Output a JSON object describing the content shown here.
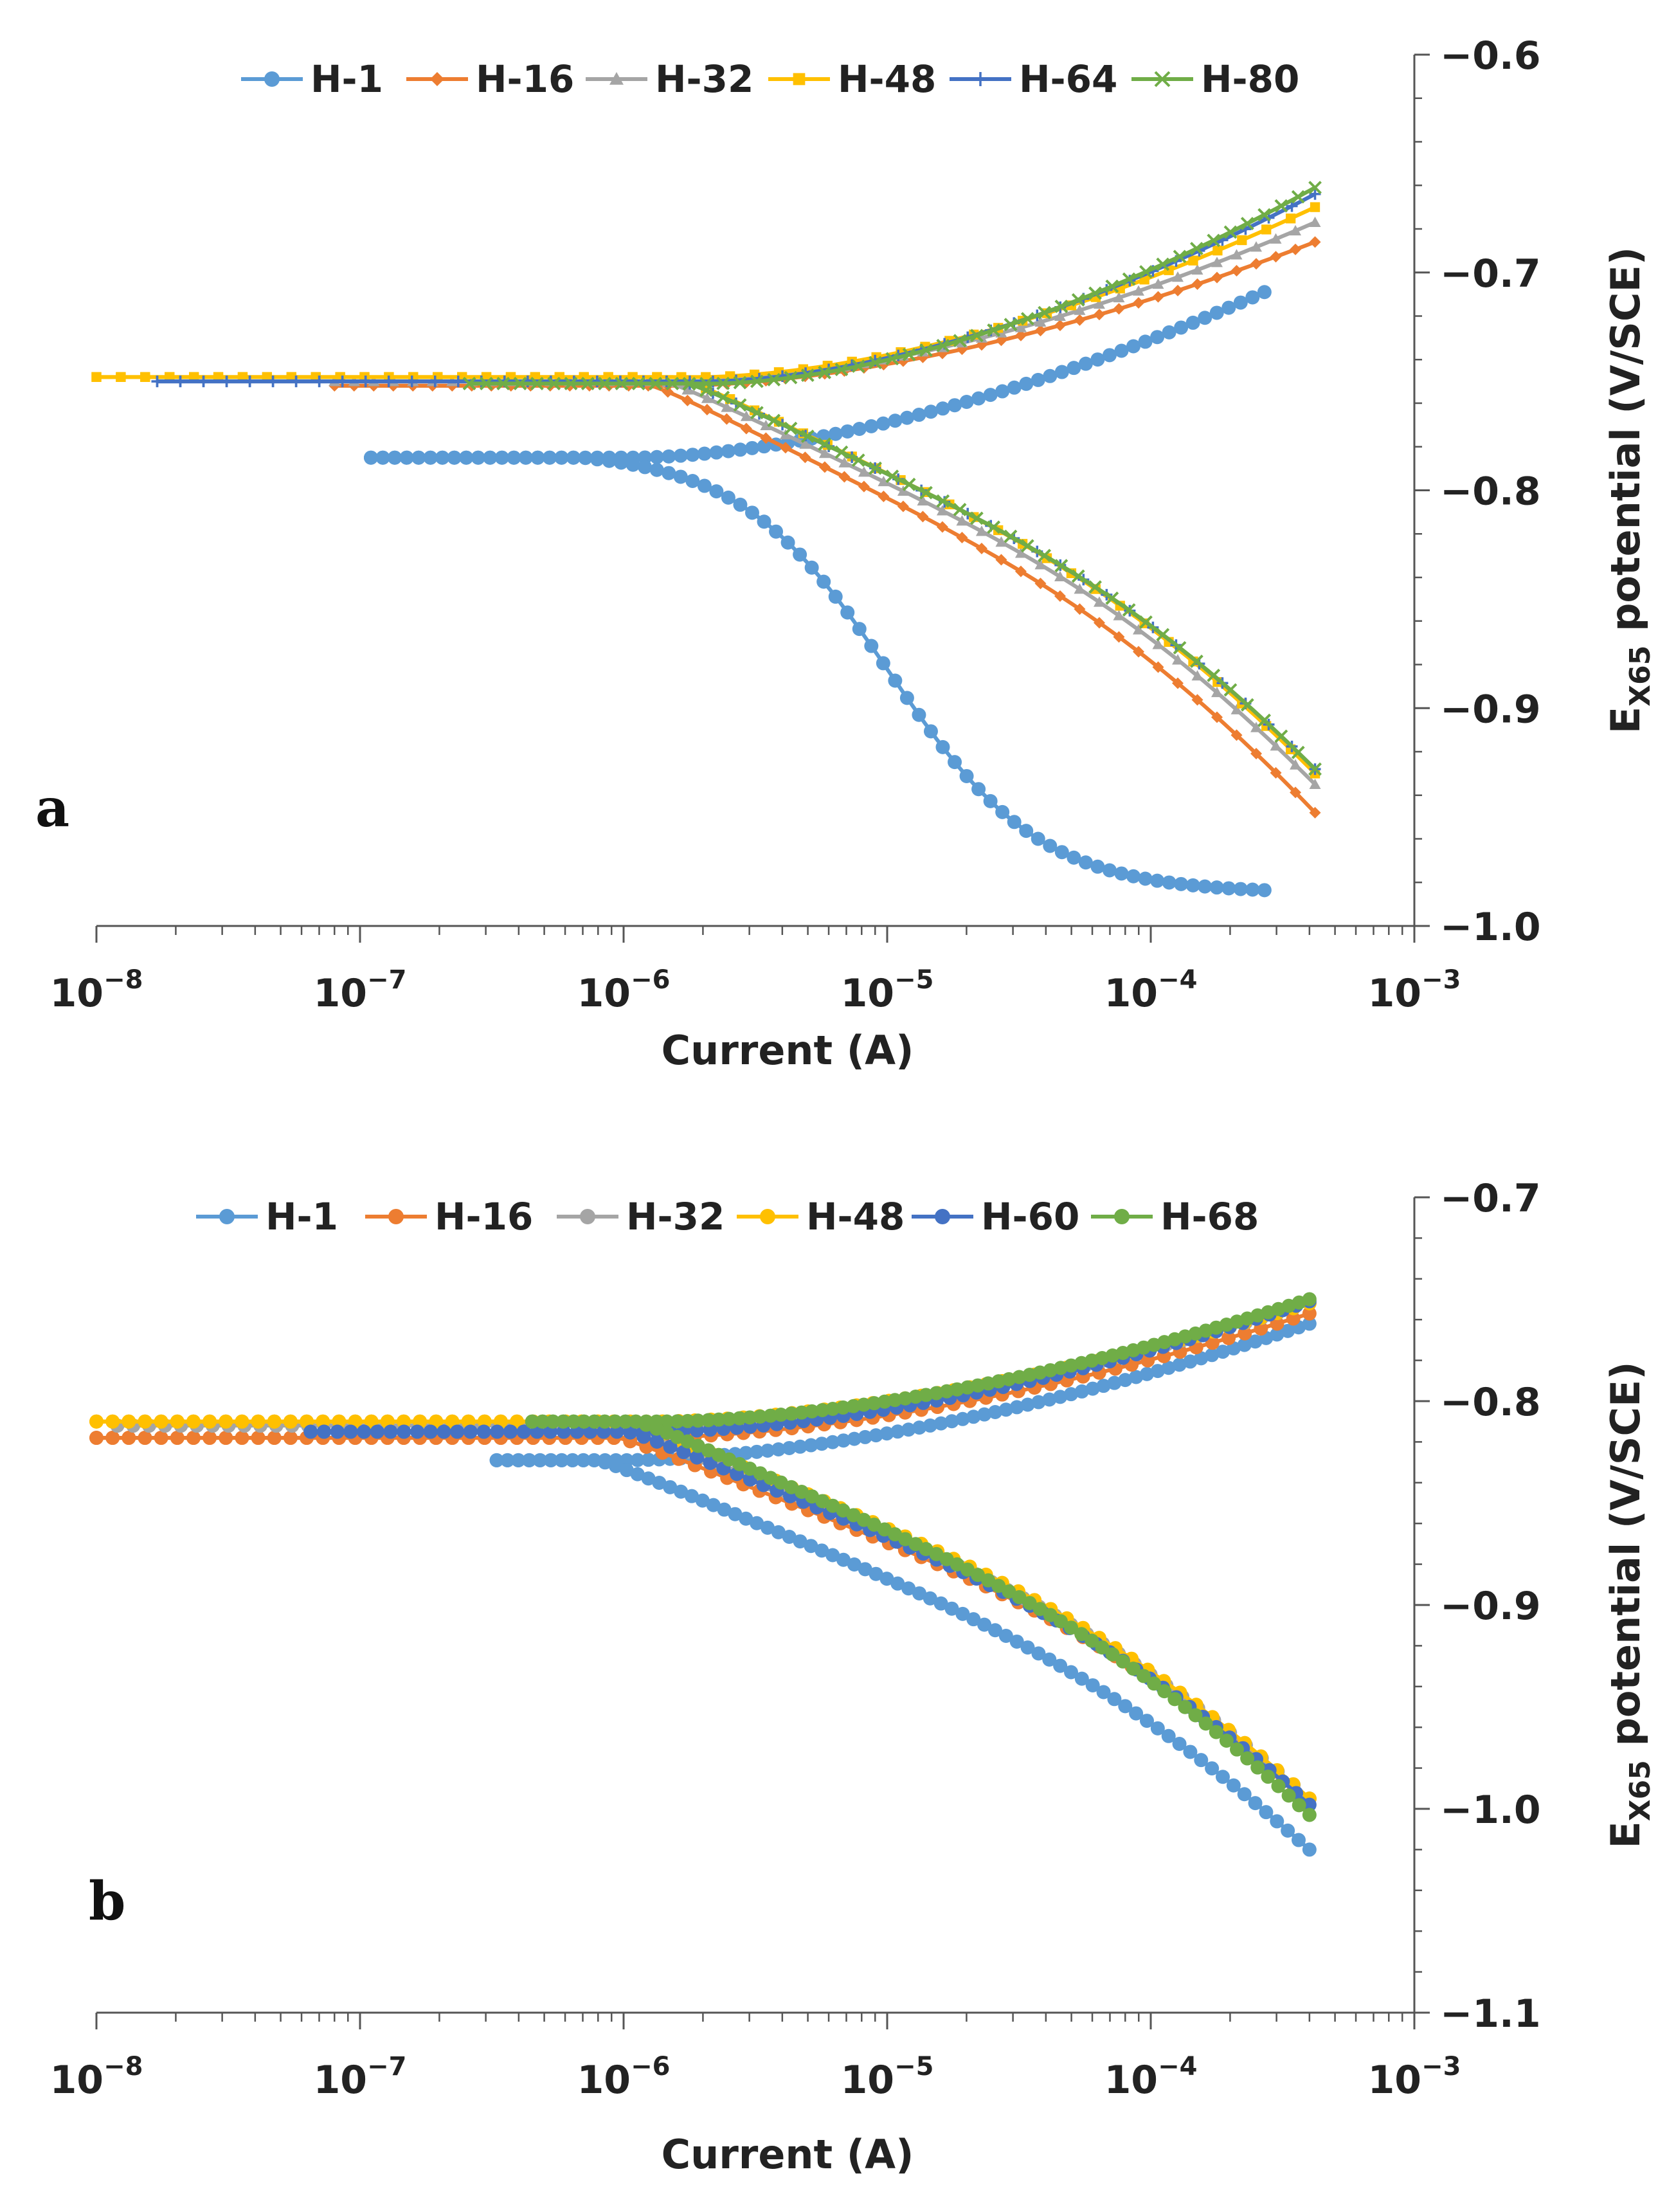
{
  "chart_data": [
    {
      "type": "line",
      "panel_label": "a",
      "xlabel": "Current (A)",
      "ylabel_main": "E",
      "ylabel_sub": "X65",
      "ylabel_rest": " potential (V/SCE)",
      "x_scale": "log",
      "xlim": [
        1e-08,
        0.001
      ],
      "ylim": [
        -1.0,
        -0.6
      ],
      "x_ticks": [
        {
          "base": "10",
          "exp": "−8"
        },
        {
          "base": "10",
          "exp": "−7"
        },
        {
          "base": "10",
          "exp": "−6"
        },
        {
          "base": "10",
          "exp": "−5"
        },
        {
          "base": "10",
          "exp": "−4"
        },
        {
          "base": "10",
          "exp": "−3"
        }
      ],
      "y_ticks": [
        "−0.6",
        "−0.7",
        "−0.8",
        "−0.9",
        "−1.0"
      ],
      "y_tick_values": [
        -0.6,
        -0.7,
        -0.8,
        -0.9,
        -1.0
      ],
      "legend_position": "top",
      "series": [
        {
          "name": "H-1",
          "color": "#5b9bd5",
          "marker": "circle",
          "ecorr": -0.785,
          "icorr": 1.1e-05,
          "imin": 1.1e-07,
          "anodic_end": -0.709,
          "cathodic_end": -0.985,
          "cathodic_end_x": 0.00027,
          "style": "sigmoid"
        },
        {
          "name": "H-16",
          "color": "#ed7d31",
          "marker": "diamond",
          "ecorr": -0.752,
          "icorr": 1.6e-05,
          "imin": 8e-08,
          "anodic_end": -0.686,
          "cathodic_end": -0.948,
          "cathodic_end_x": 0.00042,
          "style": "tafel"
        },
        {
          "name": "H-32",
          "color": "#a5a5a5",
          "marker": "triangle",
          "ecorr": -0.75,
          "icorr": 1.8e-05,
          "imin": 8e-08,
          "anodic_end": -0.677,
          "cathodic_end": -0.935,
          "cathodic_end_x": 0.00042,
          "style": "tafel"
        },
        {
          "name": "H-48",
          "color": "#ffc000",
          "marker": "square",
          "ecorr": -0.748,
          "icorr": 2e-05,
          "imin": 1e-08,
          "anodic_end": -0.67,
          "cathodic_end": -0.93,
          "cathodic_end_x": 0.00042,
          "style": "tafel"
        },
        {
          "name": "H-64",
          "color": "#4472c4",
          "marker": "plus",
          "ecorr": -0.75,
          "icorr": 2.1e-05,
          "imin": 1.7e-08,
          "anodic_end": -0.664,
          "cathodic_end": -0.928,
          "cathodic_end_x": 0.00042,
          "style": "tafel"
        },
        {
          "name": "H-80",
          "color": "#70ad47",
          "marker": "cross",
          "ecorr": -0.751,
          "icorr": 2.2e-05,
          "imin": 2.6e-07,
          "anodic_end": -0.661,
          "cathodic_end": -0.928,
          "cathodic_end_x": 0.00042,
          "style": "tafel"
        }
      ]
    },
    {
      "type": "line",
      "panel_label": "b",
      "xlabel": "Current (A)",
      "ylabel_main": "E",
      "ylabel_sub": "X65",
      "ylabel_rest": " potential (V/SCE)",
      "x_scale": "log",
      "xlim": [
        1e-08,
        0.001
      ],
      "ylim": [
        -1.1,
        -0.7
      ],
      "x_ticks": [
        {
          "base": "10",
          "exp": "−8"
        },
        {
          "base": "10",
          "exp": "−7"
        },
        {
          "base": "10",
          "exp": "−6"
        },
        {
          "base": "10",
          "exp": "−5"
        },
        {
          "base": "10",
          "exp": "−4"
        },
        {
          "base": "10",
          "exp": "−3"
        }
      ],
      "y_ticks": [
        "−0.7",
        "−0.8",
        "−0.9",
        "−1.0",
        "−1.1"
      ],
      "y_tick_values": [
        -0.7,
        -0.8,
        -0.9,
        -1.0,
        -1.1
      ],
      "legend_position": "top",
      "series": [
        {
          "name": "H-1",
          "color": "#5b9bd5",
          "marker": "circle",
          "ecorr": -0.829,
          "icorr": 1e-05,
          "imin": 3.3e-07,
          "anodic_end": -0.762,
          "cathodic_end": -1.02,
          "cathodic_end_x": 0.0004,
          "style": "tafel"
        },
        {
          "name": "H-16",
          "color": "#ed7d31",
          "marker": "circle",
          "ecorr": -0.818,
          "icorr": 1.2e-05,
          "imin": 1e-08,
          "anodic_end": -0.757,
          "cathodic_end": -0.995,
          "cathodic_end_x": 0.0004,
          "style": "tafel"
        },
        {
          "name": "H-32",
          "color": "#a5a5a5",
          "marker": "circle",
          "ecorr": -0.812,
          "icorr": 1.2e-05,
          "imin": 1.2e-08,
          "anodic_end": -0.752,
          "cathodic_end": -0.995,
          "cathodic_end_x": 0.0004,
          "style": "tafel"
        },
        {
          "name": "H-48",
          "color": "#ffc000",
          "marker": "circle",
          "ecorr": -0.81,
          "icorr": 1.3e-05,
          "imin": 1e-08,
          "anodic_end": -0.752,
          "cathodic_end": -0.995,
          "cathodic_end_x": 0.0004,
          "style": "tafel"
        },
        {
          "name": "H-60",
          "color": "#4472c4",
          "marker": "circle",
          "ecorr": -0.815,
          "icorr": 1.3e-05,
          "imin": 6.5e-08,
          "anodic_end": -0.751,
          "cathodic_end": -0.998,
          "cathodic_end_x": 0.0004,
          "style": "tafel"
        },
        {
          "name": "H-68",
          "color": "#70ad47",
          "marker": "circle",
          "ecorr": -0.81,
          "icorr": 1.4e-05,
          "imin": 4.5e-07,
          "anodic_end": -0.75,
          "cathodic_end": -1.003,
          "cathodic_end_x": 0.0004,
          "style": "tafel"
        }
      ]
    }
  ]
}
